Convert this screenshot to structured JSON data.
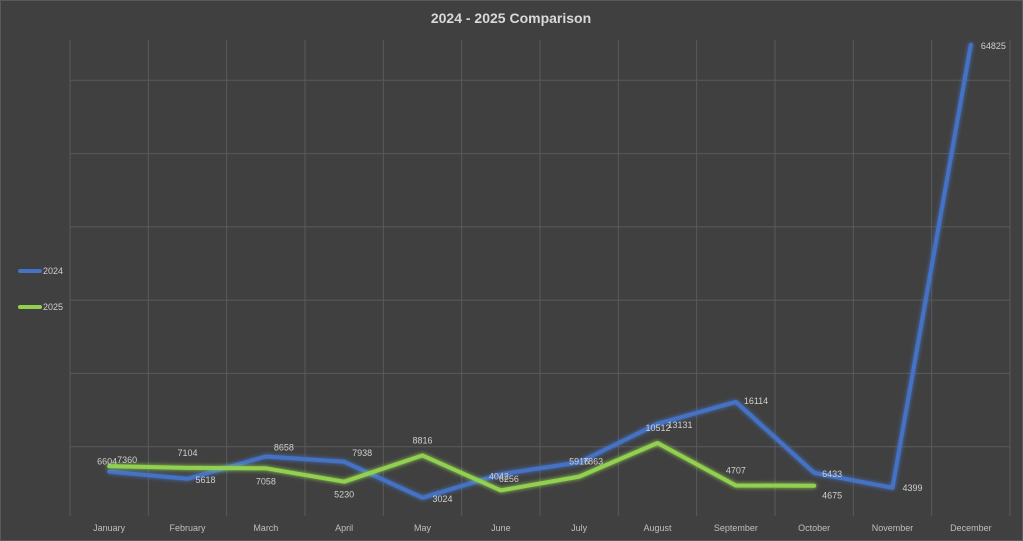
{
  "chart_data": {
    "type": "line",
    "title": "2024 - 2025 Comparison",
    "xlabel": "",
    "ylabel": "",
    "categories": [
      "January",
      "February",
      "March",
      "April",
      "May",
      "June",
      "July",
      "August",
      "September",
      "October",
      "November",
      "December"
    ],
    "ylim": [
      0,
      70000
    ],
    "grid": true,
    "legend_position": "left",
    "series": [
      {
        "name": "2024",
        "color": "#4472c4",
        "values": [
          6604,
          5618,
          8658,
          7938,
          3024,
          6256,
          7863,
          13131,
          16114,
          6433,
          4399,
          64825
        ],
        "labels": [
          "6604",
          "5618",
          "8658",
          "7938",
          "3024",
          "6256",
          "7863",
          "13131",
          "16114",
          "6433",
          "4399",
          "64825"
        ]
      },
      {
        "name": "2025",
        "color": "#92d050",
        "values": [
          7360,
          7104,
          7058,
          5230,
          8816,
          4042,
          5916,
          10512,
          4707,
          4675,
          null,
          null
        ],
        "labels": [
          "7360",
          "7104",
          "7058",
          "5230",
          "8816",
          "4042",
          "5916",
          "10512",
          "4707",
          "4675",
          "",
          ""
        ]
      }
    ]
  }
}
